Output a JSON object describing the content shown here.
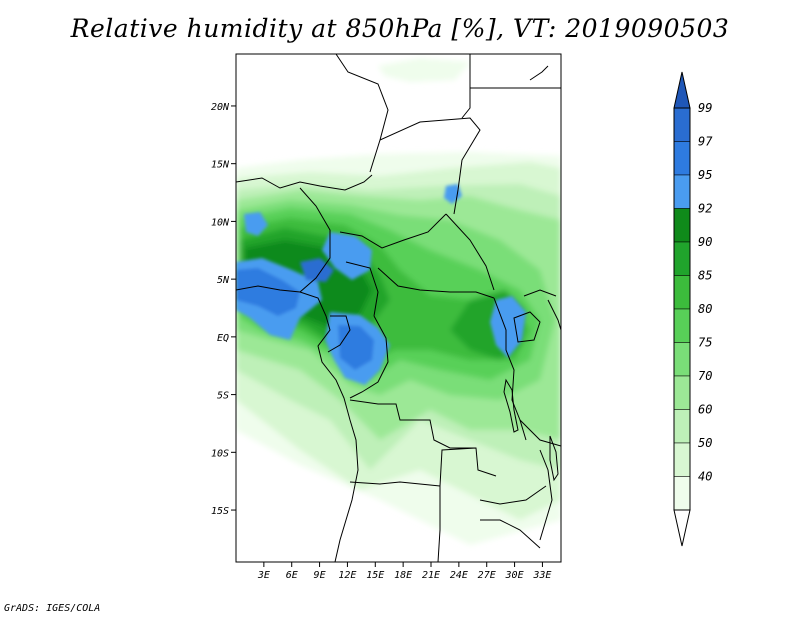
{
  "title": "Relative humidity at 850hPa [%], VT: 2019090503",
  "credit": "GrADS: IGES/COLA",
  "map": {
    "lat_range": [
      -19.5,
      24.5
    ],
    "lon_range": [
      0,
      35
    ],
    "lat_ticks": [
      {
        "value": 20,
        "label": "20N"
      },
      {
        "value": 15,
        "label": "15N"
      },
      {
        "value": 10,
        "label": "10N"
      },
      {
        "value": 5,
        "label": "5N"
      },
      {
        "value": 0,
        "label": "EQ"
      },
      {
        "value": -5,
        "label": "5S"
      },
      {
        "value": -10,
        "label": "10S"
      },
      {
        "value": -15,
        "label": "15S"
      }
    ],
    "lon_ticks": [
      {
        "value": 3,
        "label": "3E"
      },
      {
        "value": 6,
        "label": "6E"
      },
      {
        "value": 9,
        "label": "9E"
      },
      {
        "value": 12,
        "label": "12E"
      },
      {
        "value": 15,
        "label": "15E"
      },
      {
        "value": 18,
        "label": "18E"
      },
      {
        "value": 21,
        "label": "21E"
      },
      {
        "value": 24,
        "label": "24E"
      },
      {
        "value": 27,
        "label": "27E"
      },
      {
        "value": 30,
        "label": "30E"
      },
      {
        "value": 33,
        "label": "33E"
      }
    ]
  },
  "colorbar": {
    "levels": [
      {
        "label": "99",
        "color": "#2a6dd1"
      },
      {
        "label": "97",
        "color": "#2e7be0"
      },
      {
        "label": "95",
        "color": "#4a9cf0"
      },
      {
        "label": "92",
        "color": "#0f8a1a"
      },
      {
        "label": "90",
        "color": "#20a42c"
      },
      {
        "label": "85",
        "color": "#3cbc3c"
      },
      {
        "label": "80",
        "color": "#58d058"
      },
      {
        "label": "75",
        "color": "#7ade78"
      },
      {
        "label": "70",
        "color": "#9ce896"
      },
      {
        "label": "60",
        "color": "#bef0b8"
      },
      {
        "label": "50",
        "color": "#d8f7d2"
      },
      {
        "label": "40",
        "color": "#effdec"
      }
    ],
    "top_color": "#1f57b8",
    "bottom_color": "#ffffff"
  },
  "humidity_colors": {
    "rh40": "#effdec",
    "rh50": "#d8f7d2",
    "rh60": "#bef0b8",
    "rh70": "#9ce896",
    "rh75": "#7ade78",
    "rh80": "#58d058",
    "rh85": "#3cbc3c",
    "rh90": "#20a42c",
    "rh92": "#0f8a1a",
    "rh95": "#4a9cf0",
    "rh97": "#2e7be0",
    "rh99": "#2a6dd1"
  }
}
